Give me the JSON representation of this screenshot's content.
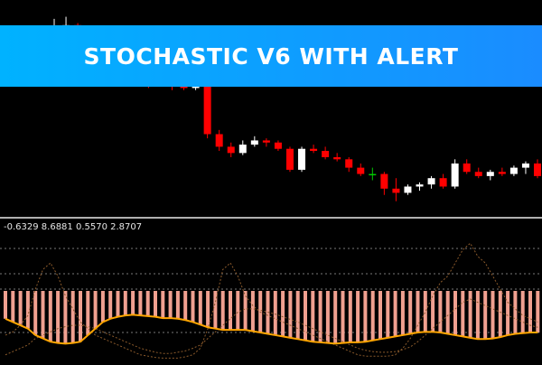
{
  "banner": {
    "title": "STOCHASTIC V6 WITH ALERT"
  },
  "colors": {
    "background": "#000000",
    "banner_start": "#00b2ff",
    "banner_end": "#1a8cff",
    "bull_candle": "#ffffff",
    "bear_candle": "#ff0000",
    "doji_candle": "#00cc00",
    "histogram": "#f0a090",
    "main_line": "#ffa500",
    "dotted_lines": "#8b5a2b",
    "separator": "#b0b0b0"
  },
  "chart_data": [
    {
      "type": "candlestick",
      "candles": [
        {
          "o": 3.0,
          "h": 4.1,
          "l": 2.2,
          "c": 3.6
        },
        {
          "o": 3.6,
          "h": 4.2,
          "l": 3.4,
          "c": 3.8
        },
        {
          "o": 3.8,
          "h": 3.9,
          "l": 1.6,
          "c": 1.8
        },
        {
          "o": 1.8,
          "h": 2.0,
          "l": 1.4,
          "c": 1.5
        },
        {
          "o": 1.5,
          "h": 1.6,
          "l": 1.1,
          "c": 1.3
        },
        {
          "o": 1.3,
          "h": 1.4,
          "l": 1.0,
          "c": 1.2
        },
        {
          "o": 1.2,
          "h": 1.6,
          "l": 0.9,
          "c": 1.4
        },
        {
          "o": 1.4,
          "h": 1.5,
          "l": 1.0,
          "c": 1.1
        },
        {
          "o": 1.1,
          "h": 1.3,
          "l": 0.8,
          "c": 1.0
        },
        {
          "o": 1.0,
          "h": 1.5,
          "l": 0.9,
          "c": 1.2
        },
        {
          "o": 1.2,
          "h": 1.3,
          "l": 0.7,
          "c": 0.9
        },
        {
          "o": 0.9,
          "h": 1.1,
          "l": 0.7,
          "c": 0.8
        },
        {
          "o": 0.8,
          "h": 1.2,
          "l": 0.7,
          "c": 1.1
        },
        {
          "o": 1.1,
          "h": 1.2,
          "l": -1.6,
          "c": -1.4
        },
        {
          "o": -1.4,
          "h": -1.2,
          "l": -2.2,
          "c": -2.0
        },
        {
          "o": -2.0,
          "h": -1.8,
          "l": -2.5,
          "c": -2.3
        },
        {
          "o": -2.3,
          "h": -1.7,
          "l": -2.4,
          "c": -1.9
        },
        {
          "o": -1.9,
          "h": -1.5,
          "l": -2.0,
          "c": -1.7
        },
        {
          "o": -1.7,
          "h": -1.6,
          "l": -2.0,
          "c": -1.8
        },
        {
          "o": -1.8,
          "h": -1.7,
          "l": -2.2,
          "c": -2.1
        },
        {
          "o": -2.1,
          "h": -2.0,
          "l": -3.2,
          "c": -3.1
        },
        {
          "o": -3.1,
          "h": -2.0,
          "l": -3.2,
          "c": -2.1
        },
        {
          "o": -2.1,
          "h": -1.9,
          "l": -2.3,
          "c": -2.2
        },
        {
          "o": -2.2,
          "h": -2.0,
          "l": -2.6,
          "c": -2.5
        },
        {
          "o": -2.5,
          "h": -2.3,
          "l": -2.7,
          "c": -2.6
        },
        {
          "o": -2.6,
          "h": -2.5,
          "l": -3.2,
          "c": -3.0
        },
        {
          "o": -3.0,
          "h": -2.8,
          "l": -3.4,
          "c": -3.3
        },
        {
          "o": -3.3,
          "h": -3.0,
          "l": -3.6,
          "c": -3.3
        },
        {
          "o": -3.3,
          "h": -3.2,
          "l": -4.3,
          "c": -4.0
        },
        {
          "o": -4.0,
          "h": -3.5,
          "l": -4.6,
          "c": -4.2
        },
        {
          "o": -4.2,
          "h": -3.8,
          "l": -4.3,
          "c": -3.9
        },
        {
          "o": -3.9,
          "h": -3.7,
          "l": -4.1,
          "c": -3.8
        },
        {
          "o": -3.8,
          "h": -3.4,
          "l": -4.0,
          "c": -3.5
        },
        {
          "o": -3.5,
          "h": -3.3,
          "l": -4.0,
          "c": -3.9
        },
        {
          "o": -3.9,
          "h": -2.6,
          "l": -4.0,
          "c": -2.8
        },
        {
          "o": -2.8,
          "h": -2.6,
          "l": -3.3,
          "c": -3.2
        },
        {
          "o": -3.2,
          "h": -3.0,
          "l": -3.5,
          "c": -3.4
        },
        {
          "o": -3.4,
          "h": -3.1,
          "l": -3.6,
          "c": -3.2
        },
        {
          "o": -3.2,
          "h": -3.0,
          "l": -3.4,
          "c": -3.3
        },
        {
          "o": -3.3,
          "h": -2.9,
          "l": -3.4,
          "c": -3.0
        },
        {
          "o": -3.0,
          "h": -2.7,
          "l": -3.3,
          "c": -2.8
        },
        {
          "o": -2.8,
          "h": -2.6,
          "l": -3.5,
          "c": -3.4
        }
      ],
      "ylim": [
        -5.0,
        5.0
      ]
    },
    {
      "type": "bar",
      "label_values": [
        "-0.6329",
        "8.6881",
        "0.5570",
        "2.8707"
      ],
      "histogram": [
        6,
        6,
        6,
        6,
        7,
        7,
        8,
        8,
        8,
        8,
        8,
        8,
        8,
        8,
        8,
        8,
        8,
        8,
        8,
        8,
        8,
        8,
        8,
        8,
        8,
        8,
        8,
        8,
        8,
        8,
        8,
        8,
        8,
        8,
        8,
        8,
        8,
        8,
        8,
        8,
        8,
        8,
        8,
        8,
        8,
        8,
        8,
        8,
        8,
        8,
        8,
        8,
        8,
        8,
        8,
        8,
        8,
        8,
        8,
        8,
        8,
        8,
        8,
        8,
        8,
        8,
        8,
        8,
        8,
        7,
        7,
        7
      ],
      "main_line": [
        1.5,
        1.0,
        0.5,
        0.0,
        -1.0,
        -1.5,
        -2.0,
        -2.2,
        -2.3,
        -2.2,
        -2.0,
        -1.0,
        0.0,
        1.0,
        1.5,
        1.8,
        2.0,
        2.1,
        2.0,
        1.9,
        1.8,
        1.6,
        1.6,
        1.5,
        1.3,
        1.0,
        0.6,
        0.2,
        0.0,
        -0.2,
        -0.2,
        -0.2,
        -0.2,
        -0.4,
        -0.6,
        -0.8,
        -1.0,
        -1.2,
        -1.4,
        -1.6,
        -1.8,
        -2.0,
        -2.1,
        -2.2,
        -2.3,
        -2.2,
        -2.1,
        -2.1,
        -2.0,
        -1.8,
        -1.6,
        -1.4,
        -1.2,
        -1.0,
        -0.8,
        -0.6,
        -0.5,
        -0.5,
        -0.6,
        -0.8,
        -1.0,
        -1.2,
        -1.4,
        -1.6,
        -1.6,
        -1.5,
        -1.3,
        -1.0,
        -0.8,
        -0.7,
        -0.6,
        -0.6
      ],
      "signal_line_1": [
        -1.0,
        -0.5,
        0.5,
        2.0,
        6.0,
        9.0,
        10.0,
        8.0,
        5.0,
        3.0,
        1.0,
        0.0,
        -1.0,
        -1.5,
        -2.0,
        -2.5,
        -3.0,
        -3.5,
        -4.0,
        -4.2,
        -4.4,
        -4.5,
        -4.5,
        -4.5,
        -4.3,
        -4.0,
        -3.0,
        0.0,
        4.0,
        9.0,
        10.0,
        8.0,
        5.0,
        3.5,
        2.5,
        2.0,
        1.5,
        1.0,
        0.5,
        0.0,
        -0.5,
        -1.0,
        -1.5,
        -2.0,
        -2.5,
        -3.0,
        -3.5,
        -4.0,
        -4.2,
        -4.2,
        -4.2,
        -4.2,
        -4.0,
        -3.0,
        -1.5,
        0.5,
        2.5,
        5.0,
        7.0,
        8.0,
        10.0,
        12.0,
        13.0,
        11.0,
        10.0,
        8.0,
        6.0,
        4.0,
        3.0,
        2.0,
        1.5,
        1.0
      ],
      "signal_line_2": [
        -4.0,
        -3.5,
        -3.0,
        -2.5,
        -1.5,
        -1.0,
        -0.5,
        0.0,
        0.3,
        0.5,
        0.5,
        0.3,
        0.0,
        -0.5,
        -1.0,
        -1.5,
        -2.0,
        -2.5,
        -3.0,
        -3.3,
        -3.6,
        -3.8,
        -3.8,
        -3.6,
        -3.4,
        -3.0,
        -2.5,
        -1.5,
        -0.5,
        0.5,
        1.5,
        2.5,
        3.0,
        3.0,
        2.8,
        2.5,
        2.2,
        1.8,
        1.4,
        1.0,
        0.5,
        0.0,
        -0.5,
        -1.0,
        -1.5,
        -2.0,
        -2.5,
        -3.0,
        -3.3,
        -3.5,
        -3.6,
        -3.6,
        -3.5,
        -3.2,
        -2.8,
        -2.0,
        -1.0,
        0.0,
        1.0,
        2.0,
        3.0,
        4.0,
        4.5,
        4.0,
        3.5,
        3.0,
        2.5,
        2.0,
        1.5,
        1.0,
        0.5,
        0.2
      ],
      "levels": [
        20,
        80,
        -20,
        -80
      ],
      "ylim": [
        -5.0,
        14.0
      ]
    }
  ]
}
